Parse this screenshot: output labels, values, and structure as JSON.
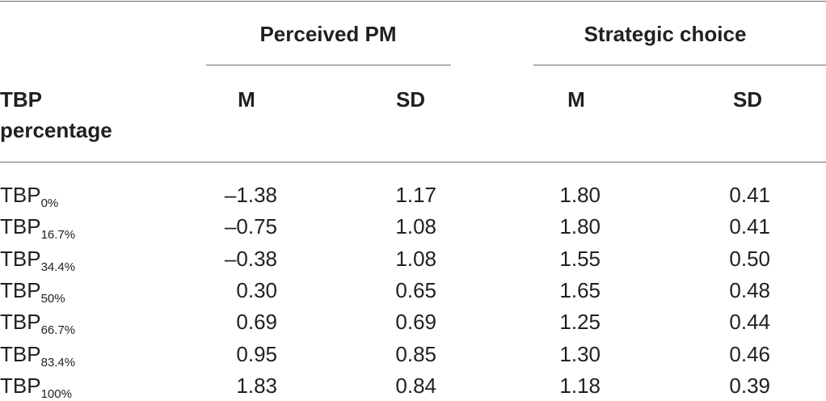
{
  "table": {
    "groups": [
      "Perceived PM",
      "Strategic choice"
    ],
    "row_header": "TBP percentage",
    "columns": [
      "M",
      "SD",
      "M",
      "SD"
    ],
    "rows": [
      {
        "label": {
          "base": "TBP",
          "sub": "0%"
        },
        "cells": [
          "–1.38",
          "1.17",
          "1.80",
          "0.41"
        ]
      },
      {
        "label": {
          "base": "TBP",
          "sub": "16.7%"
        },
        "cells": [
          "–0.75",
          "1.08",
          "1.80",
          "0.41"
        ]
      },
      {
        "label": {
          "base": "TBP",
          "sub": "34.4%"
        },
        "cells": [
          "–0.38",
          "1.08",
          "1.55",
          "0.50"
        ]
      },
      {
        "label": {
          "base": "TBP",
          "sub": "50%"
        },
        "cells": [
          "0.30",
          "0.65",
          "1.65",
          "0.48"
        ]
      },
      {
        "label": {
          "base": "TBP",
          "sub": "66.7%"
        },
        "cells": [
          "0.69",
          "0.69",
          "1.25",
          "0.44"
        ]
      },
      {
        "label": {
          "base": "TBP",
          "sub": "83.4%"
        },
        "cells": [
          "0.95",
          "0.85",
          "1.30",
          "0.46"
        ]
      },
      {
        "label": {
          "base": "TBP",
          "sub": "100%"
        },
        "cells": [
          "1.83",
          "0.84",
          "1.18",
          "0.39"
        ]
      }
    ]
  }
}
